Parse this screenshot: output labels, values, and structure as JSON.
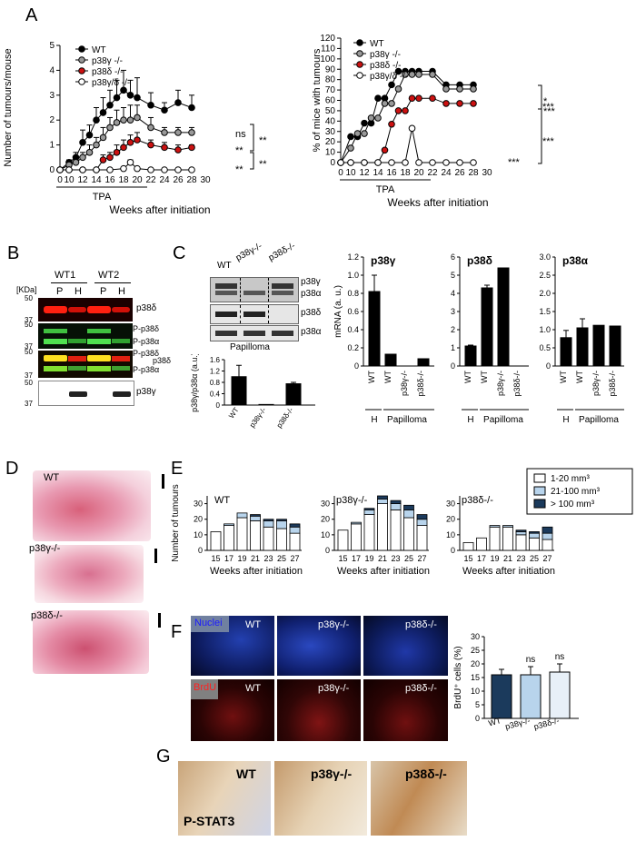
{
  "panel_letters": {
    "a": "A",
    "b": "B",
    "c": "C",
    "d": "D",
    "e": "E",
    "f": "F",
    "g": "G"
  },
  "colors": {
    "wt": "#000000",
    "gamma": "#999999",
    "delta": "#cc1111",
    "gd": "#ffffff",
    "small": "#ffffff",
    "mid": "#b8d4ec",
    "large": "#1b3a5c",
    "brdu_wt": "#1b3a5c",
    "brdu_g": "#b8d4ec",
    "brdu_d": "#e8f0f8"
  },
  "chart_data": [
    {
      "id": "A-left",
      "type": "line",
      "xlabel": "Weeks after initiation",
      "ylabel": "Number of tumours/mouse",
      "tpa_label": "TPA",
      "x_ticks": [
        "0",
        "10",
        "12",
        "14",
        "16",
        "18",
        "20",
        "22",
        "24",
        "26",
        "28",
        "30"
      ],
      "y_ticks": [
        "0",
        "1",
        "2",
        "3",
        "4",
        "5"
      ],
      "ylim": [
        0,
        5
      ],
      "legend": [
        "WT",
        "p38γ -/-",
        "p38δ -/-",
        "p38γ/δ -/-"
      ],
      "series": [
        {
          "name": "WT",
          "x": [
            0,
            10,
            11,
            12,
            13,
            14,
            15,
            16,
            17,
            18,
            19,
            20,
            22,
            24,
            26,
            28
          ],
          "y": [
            0,
            0.3,
            0.5,
            1.1,
            1.4,
            2.0,
            2.3,
            2.6,
            2.9,
            3.2,
            3.0,
            2.9,
            2.6,
            2.4,
            2.7,
            2.5
          ],
          "err": [
            0,
            0.1,
            0.2,
            0.5,
            0.4,
            0.5,
            0.6,
            0.6,
            0.7,
            0.8,
            0.6,
            0.8,
            0.5,
            0.3,
            0.5,
            0.5
          ]
        },
        {
          "name": "p38γ -/-",
          "x": [
            0,
            10,
            11,
            12,
            13,
            14,
            15,
            16,
            17,
            18,
            19,
            20,
            22,
            24,
            26,
            28
          ],
          "y": [
            0,
            0.2,
            0.3,
            0.5,
            0.7,
            1.0,
            1.3,
            1.7,
            1.9,
            2.0,
            2.0,
            2.1,
            1.7,
            1.5,
            1.5,
            1.5
          ],
          "err": [
            0,
            0.1,
            0.1,
            0.2,
            0.3,
            0.3,
            0.4,
            0.4,
            0.5,
            0.5,
            0.6,
            0.5,
            0.4,
            0.2,
            0.2,
            0.2
          ]
        },
        {
          "name": "p38δ -/-",
          "x": [
            0,
            10,
            12,
            14,
            15,
            16,
            17,
            18,
            19,
            20,
            22,
            24,
            26,
            28
          ],
          "y": [
            0,
            0,
            0,
            0,
            0.4,
            0.5,
            0.7,
            0.9,
            1.1,
            1.2,
            1.0,
            0.9,
            0.8,
            0.9
          ],
          "err": [
            0,
            0,
            0,
            0,
            0.2,
            0.2,
            0.3,
            0.3,
            0.3,
            0.3,
            0.2,
            0.2,
            0.2,
            0.1
          ]
        },
        {
          "name": "p38γ/δ -/-",
          "x": [
            0,
            10,
            12,
            14,
            16,
            18,
            19,
            20,
            22,
            24,
            26,
            28
          ],
          "y": [
            0,
            0,
            0,
            0,
            0,
            0.05,
            0.3,
            0.05,
            0,
            0,
            0,
            0
          ],
          "err": [
            0,
            0,
            0,
            0,
            0,
            0,
            0.1,
            0,
            0,
            0,
            0,
            0
          ]
        }
      ],
      "sig": [
        "ns",
        "**",
        "**",
        "**",
        "**"
      ]
    },
    {
      "id": "A-right",
      "type": "line",
      "xlabel": "Weeks after initiation",
      "ylabel": "% of mice with tumours",
      "tpa_label": "TPA",
      "x_ticks": [
        "0",
        "10",
        "12",
        "14",
        "16",
        "18",
        "20",
        "22",
        "24",
        "26",
        "28",
        "30"
      ],
      "y_ticks": [
        "0",
        "10",
        "20",
        "30",
        "40",
        "50",
        "60",
        "70",
        "80",
        "90",
        "100",
        "110",
        "120"
      ],
      "ylim": [
        0,
        120
      ],
      "legend": [
        "WT",
        "p38γ -/-",
        "p38δ -/-",
        "p38γ/δ -/-"
      ],
      "series": [
        {
          "name": "WT",
          "x": [
            0,
            10,
            11,
            12,
            13,
            14,
            15,
            16,
            17,
            18,
            19,
            20,
            22,
            24,
            26,
            28
          ],
          "y": [
            0,
            25,
            25,
            38,
            38,
            62,
            62,
            75,
            88,
            88,
            88,
            88,
            88,
            75,
            75,
            75
          ]
        },
        {
          "name": "p38γ -/-",
          "x": [
            0,
            10,
            11,
            12,
            13,
            14,
            15,
            16,
            17,
            18,
            19,
            20,
            22,
            24,
            26,
            28
          ],
          "y": [
            0,
            14,
            28,
            28,
            43,
            43,
            57,
            57,
            71,
            85,
            85,
            85,
            85,
            71,
            71,
            71
          ]
        },
        {
          "name": "p38δ -/-",
          "x": [
            0,
            10,
            12,
            14,
            15,
            16,
            17,
            18,
            19,
            20,
            22,
            24,
            26,
            28
          ],
          "y": [
            0,
            0,
            0,
            0,
            12,
            37,
            50,
            50,
            62,
            62,
            62,
            57,
            57,
            57
          ]
        },
        {
          "name": "p38γ/δ -/-",
          "x": [
            0,
            10,
            12,
            14,
            16,
            18,
            19,
            20,
            22,
            24,
            26,
            28
          ],
          "y": [
            0,
            0,
            0,
            0,
            0,
            0,
            33,
            0,
            0,
            0,
            0,
            0
          ]
        }
      ],
      "sig": [
        "*",
        "***",
        "***",
        "***",
        "***"
      ]
    },
    {
      "id": "C-small",
      "type": "bar",
      "ylabel": "p38γ/p38α (a.u.)",
      "categories": [
        "WT",
        "p38γ-/-",
        "p38δ-/-"
      ],
      "values": [
        1.0,
        0.02,
        0.75
      ],
      "err": [
        0.4,
        0,
        0.05
      ],
      "y_ticks": [
        "0",
        "0.4",
        "0.8",
        "1.2",
        "1.6"
      ],
      "ylim": [
        0,
        1.6
      ]
    },
    {
      "id": "C-p38g",
      "type": "bar",
      "title": "p38γ",
      "ylabel": "mRNA (a. u.)",
      "categories": [
        "WT",
        "WT",
        "p38γ-/-",
        "p38δ-/-"
      ],
      "values": [
        0.82,
        0.13,
        0.0,
        0.08
      ],
      "err": [
        0.18,
        0,
        0,
        0
      ],
      "y_ticks": [
        "0",
        "0.2",
        "0.4",
        "0.6",
        "0.8",
        "1.0",
        "1.2"
      ],
      "ylim": [
        0,
        1.2
      ],
      "groups": [
        "H",
        "Papilloma"
      ]
    },
    {
      "id": "C-p38d",
      "type": "bar",
      "title": "p38δ",
      "categories": [
        "WT",
        "WT",
        "p38γ-/-",
        "p38δ-/-"
      ],
      "values": [
        1.1,
        4.3,
        5.4,
        0.0
      ],
      "err": [
        0.05,
        0.15,
        0,
        0
      ],
      "y_ticks": [
        "0",
        "1",
        "2",
        "3",
        "4",
        "5",
        "6"
      ],
      "ylim": [
        0,
        6
      ],
      "groups": [
        "H",
        "Papilloma"
      ]
    },
    {
      "id": "C-p38a",
      "type": "bar",
      "title": "p38α",
      "categories": [
        "WT",
        "WT",
        "p38γ-/-",
        "p38δ-/-"
      ],
      "values": [
        0.78,
        1.05,
        1.12,
        1.1
      ],
      "err": [
        0.2,
        0.25,
        0,
        0
      ],
      "y_ticks": [
        "0",
        "0.5",
        "1.0",
        "1.5",
        "2.0",
        "2.5",
        "3.0"
      ],
      "ylim": [
        0,
        3.0
      ],
      "groups": [
        "H",
        "Papilloma"
      ]
    },
    {
      "id": "E",
      "type": "bar",
      "ylabel": "Number of tumours",
      "xlabel": "Weeks after initiation",
      "categories": [
        "15",
        "17",
        "19",
        "21",
        "23",
        "25",
        "27"
      ],
      "y_ticks": [
        "0",
        "10",
        "20",
        "30"
      ],
      "ylim": [
        0,
        35
      ],
      "legend": [
        "1-20 mm³",
        "21-100 mm³",
        "> 100 mm³"
      ],
      "groups": [
        {
          "name": "WT",
          "small": [
            12,
            16,
            21,
            19,
            15,
            14,
            11
          ],
          "mid": [
            0,
            1,
            3,
            3,
            4,
            5,
            4
          ],
          "large": [
            0,
            0,
            0,
            1,
            1,
            1,
            2
          ]
        },
        {
          "name": "p38γ-/-",
          "small": [
            13,
            17,
            23,
            30,
            26,
            21,
            16
          ],
          "mid": [
            0,
            1,
            3,
            3,
            4,
            5,
            4
          ],
          "large": [
            0,
            0,
            1,
            2,
            2,
            3,
            3
          ]
        },
        {
          "name": "p38δ-/-",
          "small": [
            5,
            8,
            15,
            15,
            10,
            8,
            7
          ],
          "mid": [
            0,
            0,
            1,
            1,
            2,
            3,
            4
          ],
          "large": [
            0,
            0,
            0,
            0,
            1,
            1,
            4
          ]
        }
      ]
    },
    {
      "id": "F",
      "type": "bar",
      "ylabel": "BrdU⁺ cells (%)",
      "categories": [
        "WT",
        "p38γ-/-",
        "p38δ-/-"
      ],
      "values": [
        16,
        16,
        17
      ],
      "err": [
        2,
        3,
        3
      ],
      "sig": [
        "",
        "ns",
        "ns"
      ],
      "y_ticks": [
        "0",
        "5",
        "10",
        "15",
        "20",
        "25",
        "30"
      ],
      "ylim": [
        0,
        30
      ]
    }
  ],
  "panel_b": {
    "kda": "[KDa]",
    "groups": [
      "WT1",
      "WT2"
    ],
    "lanes": [
      "P",
      "H",
      "P",
      "H"
    ],
    "rows": [
      {
        "label1": "p38δ",
        "label2": "",
        "markers": [
          "50",
          "37"
        ]
      },
      {
        "label1": "P-p38δ",
        "label2": "P-p38α",
        "markers": [
          "50",
          "37"
        ]
      },
      {
        "label1": "P-p38δ",
        "label2": "P-p38α",
        "extra": "p38δ",
        "markers": [
          "50",
          "37"
        ]
      },
      {
        "label1": "p38γ",
        "label2": "",
        "markers": [
          "50",
          "37"
        ]
      }
    ]
  },
  "panel_c": {
    "lanes": [
      "WT",
      "p38γ-/-",
      "p38δ-/-"
    ],
    "blots": [
      "p38γ",
      "p38α",
      "p38δ",
      "p38α"
    ],
    "caption": "Papilloma",
    "group_h": "H",
    "group_pap": "Papilloma"
  },
  "panel_d": {
    "labels": [
      "WT",
      "p38γ-/-",
      "p38δ-/-"
    ]
  },
  "panel_f": {
    "nuclei": "Nuclei",
    "brdu": "BrdU",
    "labels": [
      "WT",
      "p38γ-/-",
      "p38δ-/-"
    ]
  },
  "panel_g": {
    "labels": [
      "WT",
      "p38γ-/-",
      "p38δ-/-"
    ],
    "stain": "P-STAT3"
  }
}
